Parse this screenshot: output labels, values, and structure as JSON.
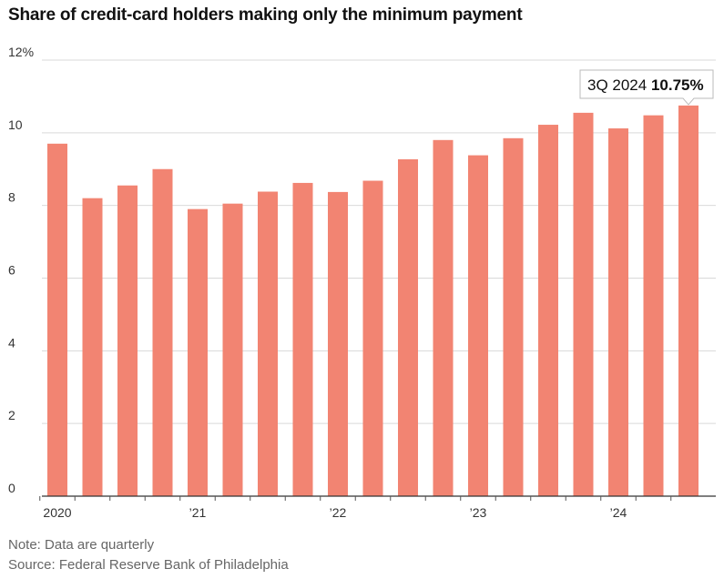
{
  "chart_data": {
    "type": "bar",
    "title": "Share of credit-card holders making only the minimum payment",
    "xlabel": "",
    "ylabel": "",
    "categories": [
      "1Q 2020",
      "2Q 2020",
      "3Q 2020",
      "4Q 2020",
      "1Q 2021",
      "2Q 2021",
      "3Q 2021",
      "4Q 2021",
      "1Q 2022",
      "2Q 2022",
      "3Q 2022",
      "4Q 2022",
      "1Q 2023",
      "2Q 2023",
      "3Q 2023",
      "4Q 2023",
      "1Q 2024",
      "2Q 2024",
      "3Q 2024"
    ],
    "values": [
      9.7,
      8.2,
      8.55,
      9.0,
      7.9,
      8.05,
      8.38,
      8.62,
      8.37,
      8.68,
      9.27,
      9.8,
      9.38,
      9.85,
      10.22,
      10.55,
      10.12,
      10.48,
      10.75
    ],
    "ylim": [
      0,
      12
    ],
    "yticks": [
      0,
      2,
      4,
      6,
      8,
      10,
      12
    ],
    "ytick_labels": [
      "0",
      "2",
      "4",
      "6",
      "8",
      "10",
      "12%"
    ],
    "xtick_labels": [
      {
        "label": "2020",
        "index": 0
      },
      {
        "label": "’21",
        "index": 4
      },
      {
        "label": "’22",
        "index": 8
      },
      {
        "label": "’23",
        "index": 12
      },
      {
        "label": "’24",
        "index": 16
      }
    ],
    "bar_color": "#f28472",
    "grid": true,
    "annotation": {
      "index": 18,
      "period": "3Q 2024",
      "value_label": "10.75%"
    }
  },
  "footer": {
    "note": "Note: Data are quarterly",
    "source": "Source: Federal Reserve Bank of Philadelphia"
  }
}
